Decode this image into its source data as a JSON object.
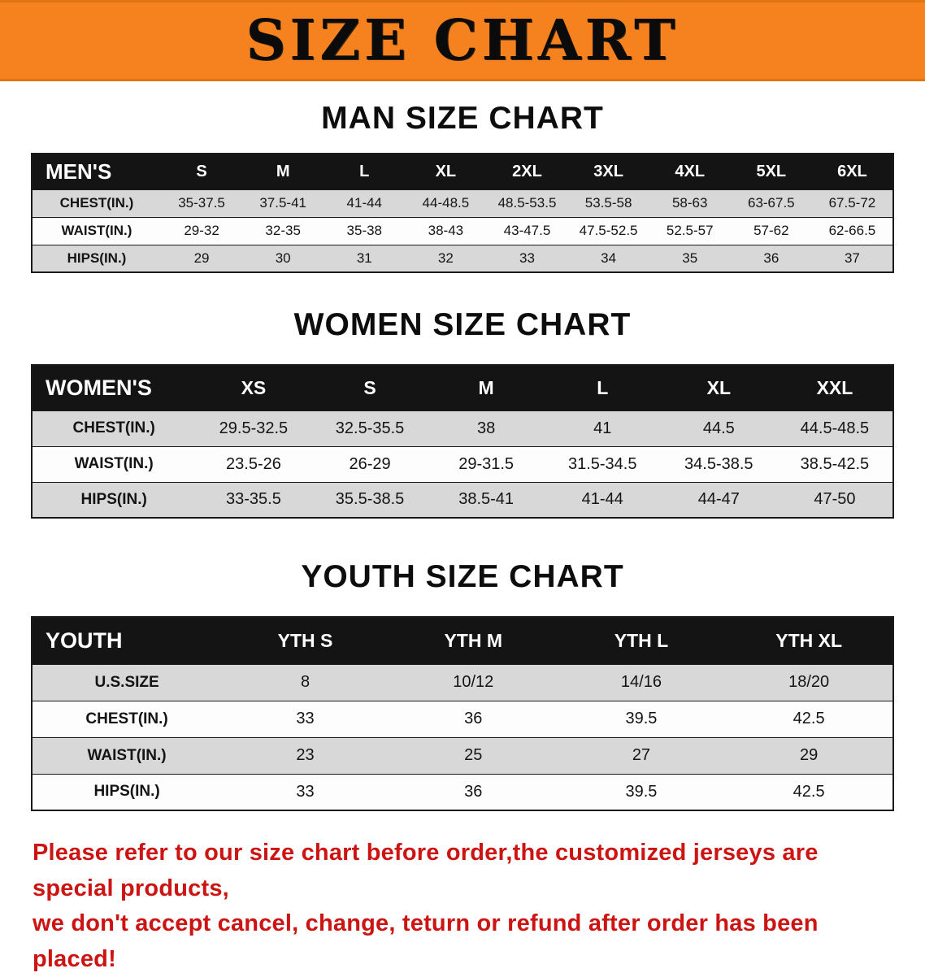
{
  "banner": {
    "title": "SIZE CHART"
  },
  "sections": [
    {
      "heading": "MAN SIZE CHART",
      "columns": [
        "MEN'S",
        "S",
        "M",
        "L",
        "XL",
        "2XL",
        "3XL",
        "4XL",
        "5XL",
        "6XL"
      ],
      "rows": [
        {
          "label": "CHEST(IN.)",
          "values": [
            "35-37.5",
            "37.5-41",
            "41-44",
            "44-48.5",
            "48.5-53.5",
            "53.5-58",
            "58-63",
            "63-67.5",
            "67.5-72"
          ]
        },
        {
          "label": "WAIST(IN.)",
          "values": [
            "29-32",
            "32-35",
            "35-38",
            "38-43",
            "43-47.5",
            "47.5-52.5",
            "52.5-57",
            "57-62",
            "62-66.5"
          ]
        },
        {
          "label": "HIPS(IN.)",
          "values": [
            "29",
            "30",
            "31",
            "32",
            "33",
            "34",
            "35",
            "36",
            "37"
          ]
        }
      ]
    },
    {
      "heading": "WOMEN SIZE CHART",
      "columns": [
        "WOMEN'S",
        "XS",
        "S",
        "M",
        "L",
        "XL",
        "XXL"
      ],
      "rows": [
        {
          "label": "CHEST(IN.)",
          "values": [
            "29.5-32.5",
            "32.5-35.5",
            "38",
            "41",
            "44.5",
            "44.5-48.5"
          ]
        },
        {
          "label": "WAIST(IN.)",
          "values": [
            "23.5-26",
            "26-29",
            "29-31.5",
            "31.5-34.5",
            "34.5-38.5",
            "38.5-42.5"
          ]
        },
        {
          "label": "HIPS(IN.)",
          "values": [
            "33-35.5",
            "35.5-38.5",
            "38.5-41",
            "41-44",
            "44-47",
            "47-50"
          ]
        }
      ]
    },
    {
      "heading": "YOUTH SIZE CHART",
      "columns": [
        "YOUTH",
        "YTH S",
        "YTH M",
        "YTH L",
        "YTH XL"
      ],
      "rows": [
        {
          "label": "U.S.SIZE",
          "values": [
            "8",
            "10/12",
            "14/16",
            "18/20"
          ]
        },
        {
          "label": "CHEST(IN.)",
          "values": [
            "33",
            "36",
            "39.5",
            "42.5"
          ]
        },
        {
          "label": "WAIST(IN.)",
          "values": [
            "23",
            "25",
            "27",
            "29"
          ]
        },
        {
          "label": "HIPS(IN.)",
          "values": [
            "33",
            "36",
            "39.5",
            "42.5"
          ]
        }
      ]
    }
  ],
  "footer": {
    "line1": "Please refer to our size chart before order,the customized jerseys are special products,",
    "line2": "we don't accept cancel, change, teturn or refund after order has been placed!"
  },
  "colors": {
    "banner_bg": "#f5821f",
    "table_header_bg": "#141414",
    "row_alt": "#d8d8d8",
    "footer_text": "#cc1412"
  }
}
